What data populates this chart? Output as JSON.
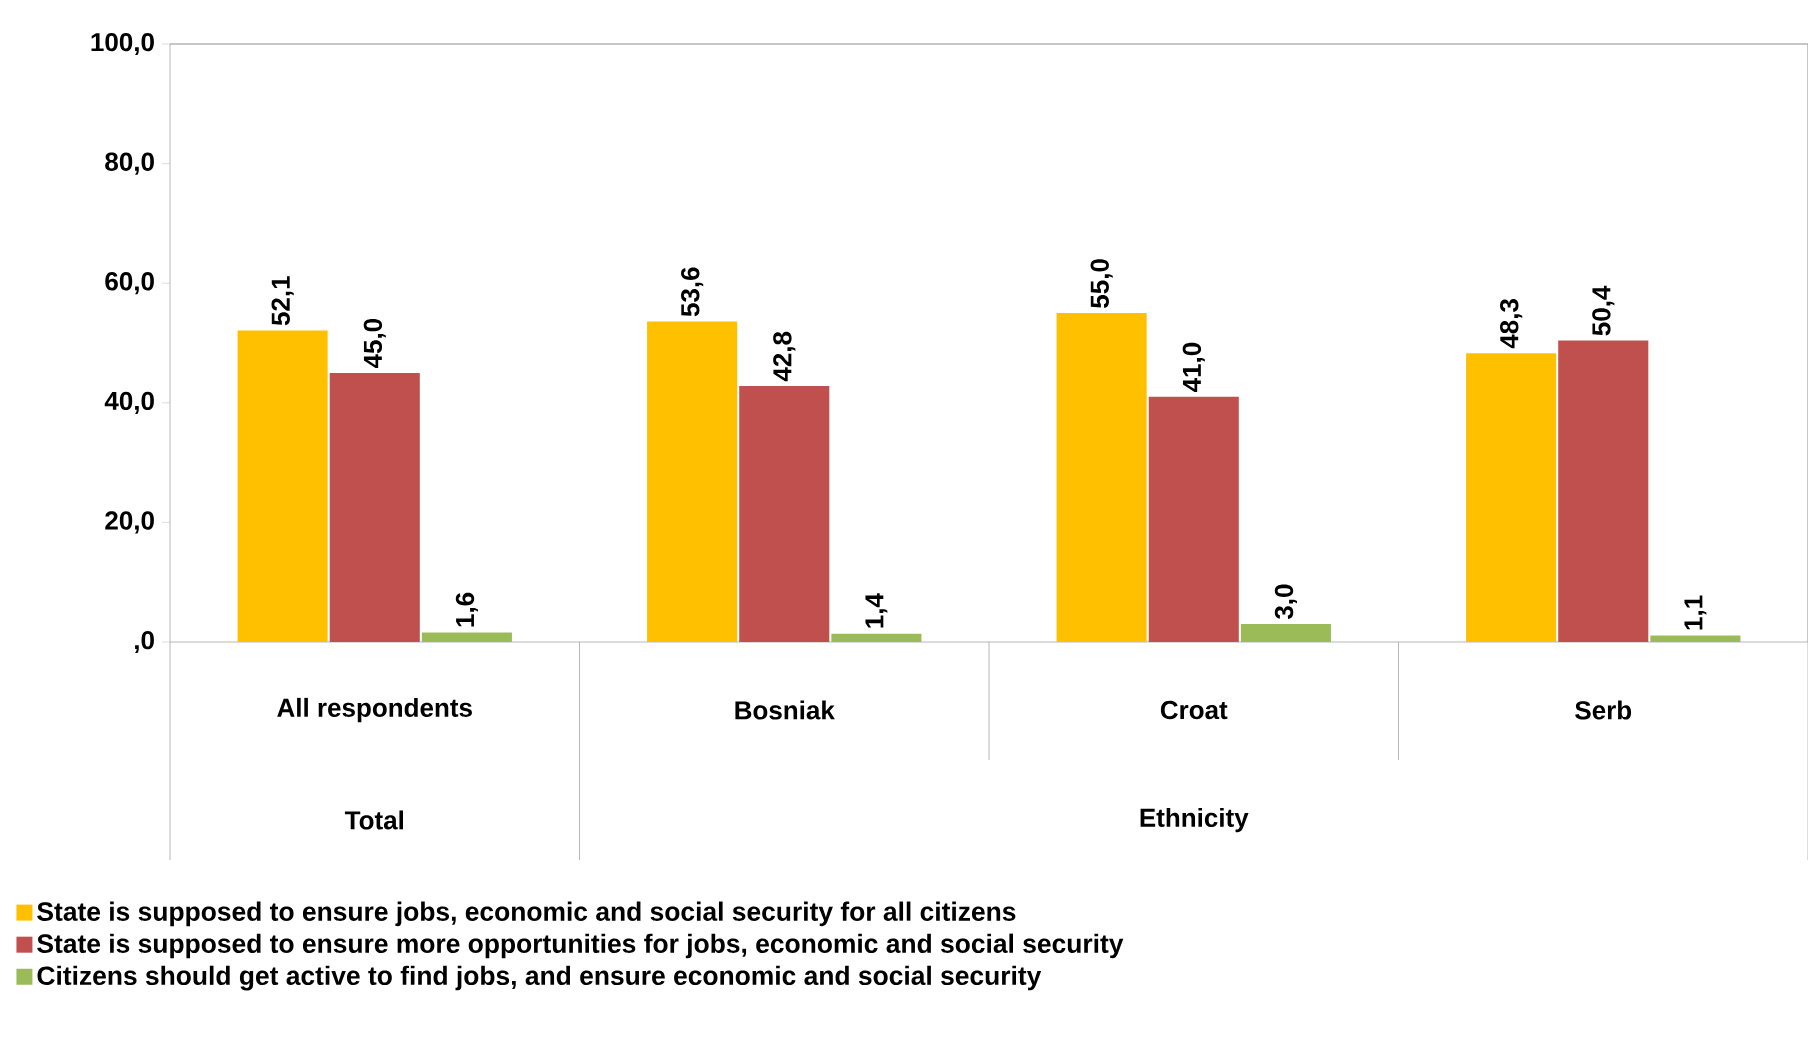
{
  "chart_data": {
    "type": "bar",
    "categories": [
      "All respondents",
      "Bosniak",
      "Croat",
      "Serb"
    ],
    "series": [
      {
        "name": "State is supposed to ensure jobs, economic and social security for all citizens",
        "color": "#ffc000",
        "values": [
          52.1,
          53.6,
          55.0,
          48.3
        ],
        "value_labels": [
          "52,1",
          "53,6",
          "55,0",
          "48,3"
        ]
      },
      {
        "name": "State is supposed to ensure more opportunities for jobs, economic and social security",
        "color": "#c0504d",
        "values": [
          45.0,
          42.8,
          41.0,
          50.4
        ],
        "value_labels": [
          "45,0",
          "42,8",
          "41,0",
          "50,4"
        ]
      },
      {
        "name": "Citizens should get active to find jobs, and ensure economic and social security",
        "color": "#9bbb59",
        "values": [
          1.6,
          1.4,
          3.0,
          1.1
        ],
        "value_labels": [
          "1,6",
          "1,4",
          "3,0",
          "1,1"
        ]
      }
    ],
    "annotations": [
      "Total",
      "Ethnicity"
    ],
    "ylim": [
      0,
      100
    ],
    "yticks": [
      {
        "value": 0,
        "label": ",0"
      },
      {
        "value": 20,
        "label": "20,0"
      },
      {
        "value": 40,
        "label": "40,0"
      },
      {
        "value": 60,
        "label": "60,0"
      },
      {
        "value": 80,
        "label": "80,0"
      },
      {
        "value": 100,
        "label": "100,0"
      }
    ],
    "legend": "bottom",
    "grid": false
  }
}
